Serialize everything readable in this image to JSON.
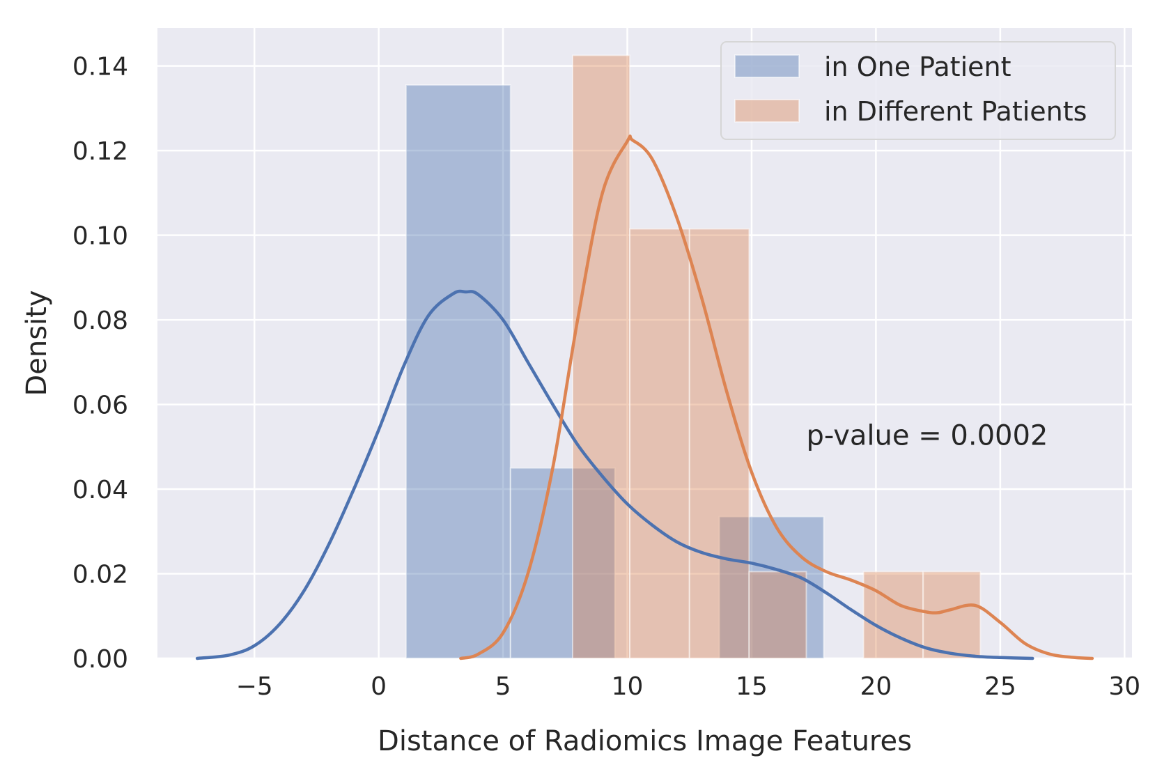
{
  "colors": {
    "background": "#ffffff",
    "plot_background": "#eaeaf2",
    "grid": "#ffffff",
    "series_blue": "#4c72b0",
    "series_orange": "#dd8452",
    "text": "#262626"
  },
  "chart_data": {
    "type": "histogram+kde",
    "title": "",
    "xlabel": "Distance of Radiomics Image Features",
    "ylabel": "Density",
    "xlim": [
      -8.9,
      30.3
    ],
    "ylim": [
      0,
      0.149
    ],
    "xticks": [
      {
        "value": -5,
        "label": "−5"
      },
      {
        "value": 0,
        "label": "0"
      },
      {
        "value": 5,
        "label": "5"
      },
      {
        "value": 10,
        "label": "10"
      },
      {
        "value": 15,
        "label": "15"
      },
      {
        "value": 20,
        "label": "20"
      },
      {
        "value": 25,
        "label": "25"
      },
      {
        "value": 30,
        "label": "30"
      }
    ],
    "yticks": [
      {
        "value": 0.0,
        "label": "0.00"
      },
      {
        "value": 0.02,
        "label": "0.02"
      },
      {
        "value": 0.04,
        "label": "0.04"
      },
      {
        "value": 0.06,
        "label": "0.06"
      },
      {
        "value": 0.08,
        "label": "0.08"
      },
      {
        "value": 0.1,
        "label": "0.10"
      },
      {
        "value": 0.12,
        "label": "0.12"
      },
      {
        "value": 0.14,
        "label": "0.14"
      }
    ],
    "grid": true,
    "legend": {
      "placement": "top-right"
    },
    "annotations": [
      {
        "text": "p-value = 0.0002",
        "x": 17.2,
        "y": 0.0505
      }
    ],
    "series": [
      {
        "name": "in One Patient",
        "color": "#4c72b0",
        "histogram": {
          "bins": [
            {
              "x0": 1.1,
              "x1": 5.3,
              "density": 0.1355
            },
            {
              "x0": 5.3,
              "x1": 9.5,
              "density": 0.045
            },
            {
              "x0": 9.5,
              "x1": 13.7,
              "density": 0.0
            },
            {
              "x0": 13.7,
              "x1": 17.9,
              "density": 0.0335
            }
          ]
        },
        "kde": {
          "x": [
            -7.3,
            -6.0,
            -5.0,
            -4.0,
            -3.0,
            -2.0,
            -1.0,
            0.0,
            1.0,
            2.0,
            3.0,
            3.5,
            4.0,
            5.0,
            6.0,
            7.0,
            8.0,
            9.0,
            10.0,
            11.0,
            12.0,
            13.0,
            14.0,
            15.0,
            16.0,
            17.0,
            18.0,
            19.0,
            20.0,
            21.0,
            22.0,
            23.0,
            24.0,
            25.0,
            26.3
          ],
          "y": [
            0.0,
            0.0008,
            0.003,
            0.008,
            0.016,
            0.027,
            0.04,
            0.054,
            0.069,
            0.081,
            0.0862,
            0.0866,
            0.086,
            0.08,
            0.07,
            0.06,
            0.0505,
            0.043,
            0.0365,
            0.0315,
            0.0275,
            0.025,
            0.0235,
            0.0225,
            0.021,
            0.019,
            0.0155,
            0.0115,
            0.0078,
            0.0048,
            0.0025,
            0.0012,
            0.0005,
            0.0002,
            0.0
          ]
        }
      },
      {
        "name": "in Different Patients",
        "color": "#dd8452",
        "histogram": {
          "bins": [
            {
              "x0": 7.8,
              "x1": 10.1,
              "density": 0.1425
            },
            {
              "x0": 10.1,
              "x1": 12.5,
              "density": 0.1015
            },
            {
              "x0": 12.5,
              "x1": 14.9,
              "density": 0.1015
            },
            {
              "x0": 14.9,
              "x1": 17.2,
              "density": 0.0205
            },
            {
              "x0": 17.2,
              "x1": 19.5,
              "density": 0.0
            },
            {
              "x0": 19.5,
              "x1": 21.9,
              "density": 0.0205
            },
            {
              "x0": 21.9,
              "x1": 24.2,
              "density": 0.0205
            }
          ]
        },
        "kde": {
          "x": [
            3.3,
            4.0,
            5.0,
            6.0,
            7.0,
            8.0,
            9.0,
            10.0,
            10.2,
            11.0,
            12.0,
            13.0,
            14.0,
            15.0,
            16.0,
            17.0,
            18.0,
            19.0,
            20.0,
            21.0,
            22.0,
            22.5,
            23.0,
            24.0,
            25.0,
            26.0,
            27.0,
            28.0,
            28.7
          ],
          "y": [
            0.0,
            0.001,
            0.006,
            0.02,
            0.045,
            0.08,
            0.11,
            0.1222,
            0.1225,
            0.118,
            0.104,
            0.085,
            0.063,
            0.044,
            0.031,
            0.024,
            0.0205,
            0.0185,
            0.016,
            0.0125,
            0.011,
            0.0108,
            0.0115,
            0.0125,
            0.0085,
            0.0035,
            0.001,
            0.0002,
            0.0
          ]
        }
      }
    ]
  }
}
